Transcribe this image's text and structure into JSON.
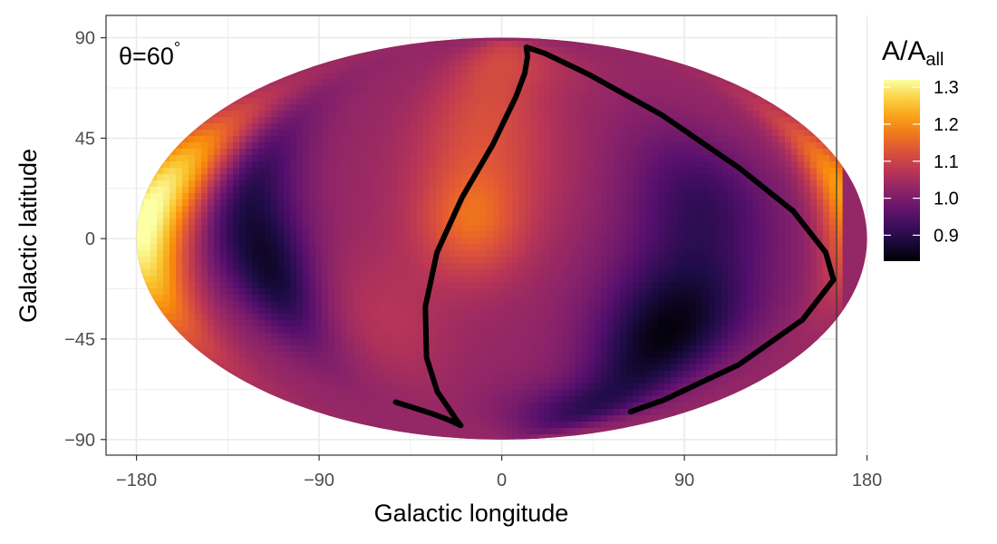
{
  "chart_data": {
    "type": "heatmap",
    "projection": "mollweide",
    "annotation": {
      "prefix": "θ=",
      "value": "60",
      "unit": "°"
    },
    "xlabel": "Galactic longitude",
    "ylabel": "Galactic latitude",
    "x_ticks": [
      "−180",
      "−90",
      "0",
      "90",
      "180"
    ],
    "x_tick_values": [
      -180,
      -90,
      0,
      90,
      180
    ],
    "y_ticks": [
      "90",
      "45",
      "0",
      "−45",
      "−90"
    ],
    "y_tick_values": [
      90,
      45,
      0,
      -45,
      -90
    ],
    "xlim": [
      -195,
      165
    ],
    "ylim": [
      -97,
      100
    ],
    "grid": true,
    "legend": {
      "title_main": "A",
      "title_sep": "/",
      "title_sub_base": "A",
      "title_sub": "all",
      "ticks": [
        "1.3",
        "1.2",
        "1.1",
        "1.0",
        "0.9"
      ],
      "tick_values": [
        1.3,
        1.2,
        1.1,
        1.0,
        0.9
      ],
      "range": [
        0.83,
        1.32
      ],
      "placement": "right"
    },
    "colormap": "inferno",
    "background_value": 1.03,
    "blobs": [
      {
        "lon": -178,
        "lat": 0,
        "value": 1.3,
        "slon": 14,
        "slat": 26
      },
      {
        "lon": -160,
        "lat": 25,
        "value": 1.16,
        "slon": 15,
        "slat": 18
      },
      {
        "lon": -130,
        "lat": 15,
        "value": 0.9,
        "slon": 16,
        "slat": 22
      },
      {
        "lon": -112,
        "lat": -15,
        "value": 0.9,
        "slon": 14,
        "slat": 18
      },
      {
        "lon": -10,
        "lat": 40,
        "value": 1.12,
        "slon": 28,
        "slat": 26
      },
      {
        "lon": -15,
        "lat": 5,
        "value": 1.13,
        "slon": 18,
        "slat": 14
      },
      {
        "lon": 20,
        "lat": 75,
        "value": 1.08,
        "slon": 40,
        "slat": 12
      },
      {
        "lon": 92,
        "lat": -35,
        "value": 0.84,
        "slon": 28,
        "slat": 22
      },
      {
        "lon": 100,
        "lat": 15,
        "value": 0.93,
        "slon": 25,
        "slat": 18
      },
      {
        "lon": 60,
        "lat": -70,
        "value": 0.95,
        "slon": 40,
        "slat": 10
      },
      {
        "lon": 172,
        "lat": 15,
        "value": 1.22,
        "slon": 10,
        "slat": 22
      },
      {
        "lon": -60,
        "lat": -30,
        "value": 1.07,
        "slon": 22,
        "slat": 18
      }
    ],
    "series": [
      {
        "type": "line",
        "points": [
          [
            -90,
            -65
          ],
          [
            -80,
            -68
          ],
          [
            -70,
            -71
          ],
          [
            -62,
            -74
          ],
          [
            -58,
            -76
          ],
          [
            -55,
            -78
          ],
          [
            -52,
            -75
          ],
          [
            -49,
            -60
          ],
          [
            -46,
            -45
          ],
          [
            -40,
            -25
          ],
          [
            -32,
            -5
          ],
          [
            -20,
            15
          ],
          [
            -5,
            35
          ],
          [
            10,
            55
          ],
          [
            20,
            66
          ],
          [
            30,
            75
          ],
          [
            40,
            81
          ],
          [
            55,
            77
          ],
          [
            75,
            65
          ],
          [
            100,
            47
          ],
          [
            125,
            26
          ],
          [
            145,
            10
          ],
          [
            160,
            -5
          ],
          [
            167,
            -15
          ],
          [
            162,
            -30
          ],
          [
            150,
            -48
          ],
          [
            134,
            -64
          ],
          [
            125,
            -70
          ]
        ]
      }
    ]
  }
}
